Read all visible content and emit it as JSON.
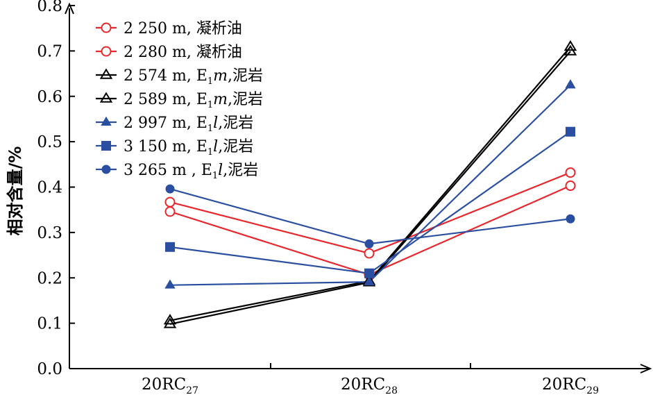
{
  "chart_data": {
    "type": "line",
    "categories": [
      {
        "main": "20RC",
        "sub": "27"
      },
      {
        "main": "20RC",
        "sub": "28"
      },
      {
        "main": "20RC",
        "sub": "29"
      }
    ],
    "ylabel": "相对含量/%",
    "ylim": [
      0,
      0.8
    ],
    "yticks": [
      "0.0",
      "0.1",
      "0.2",
      "0.3",
      "0.4",
      "0.5",
      "0.6",
      "0.7",
      "0.8"
    ],
    "grid": false,
    "legend_position": "top-left",
    "series": [
      {
        "name": "2 250 m, 凝析油",
        "label_parts": [
          "2 250 m, 凝析油"
        ],
        "color": "#e8262b",
        "marker": "circle-open",
        "values": [
          0.367,
          0.254,
          0.432
        ]
      },
      {
        "name": "2 280 m, 凝析油",
        "label_parts": [
          "2 280 m, 凝析油"
        ],
        "color": "#e8262b",
        "marker": "circle-open",
        "values": [
          0.346,
          0.207,
          0.403
        ]
      },
      {
        "name": "2 574 m, E1m,泥岩",
        "label_parts": [
          "2 574 m, E",
          "1",
          "m",
          ",泥岩"
        ],
        "color": "#000000",
        "marker": "triangle-open",
        "values": [
          0.106,
          0.193,
          0.709
        ]
      },
      {
        "name": "2 589 m, E1m,泥岩",
        "label_parts": [
          "2 589 m, E",
          "1",
          "m",
          ",泥岩"
        ],
        "color": "#000000",
        "marker": "triangle-open",
        "values": [
          0.098,
          0.19,
          0.699
        ]
      },
      {
        "name": "2 997 m, E1l,泥岩",
        "label_parts": [
          "2 997 m, E",
          "1",
          "l",
          ",泥岩"
        ],
        "color": "#2a4fa0",
        "marker": "triangle-filled",
        "values": [
          0.184,
          0.191,
          0.625
        ]
      },
      {
        "name": "3 150 m, E1l,泥岩",
        "label_parts": [
          "3 150 m, E",
          "1",
          "l",
          ",泥岩"
        ],
        "color": "#2a4fa0",
        "marker": "square-filled",
        "values": [
          0.268,
          0.21,
          0.522
        ]
      },
      {
        "name": "3 265 m , E1l,泥岩",
        "label_parts": [
          "3 265 m , E",
          "1",
          "l",
          ",泥岩"
        ],
        "color": "#2a4fa0",
        "marker": "circle-filled",
        "values": [
          0.396,
          0.275,
          0.33
        ]
      }
    ]
  }
}
